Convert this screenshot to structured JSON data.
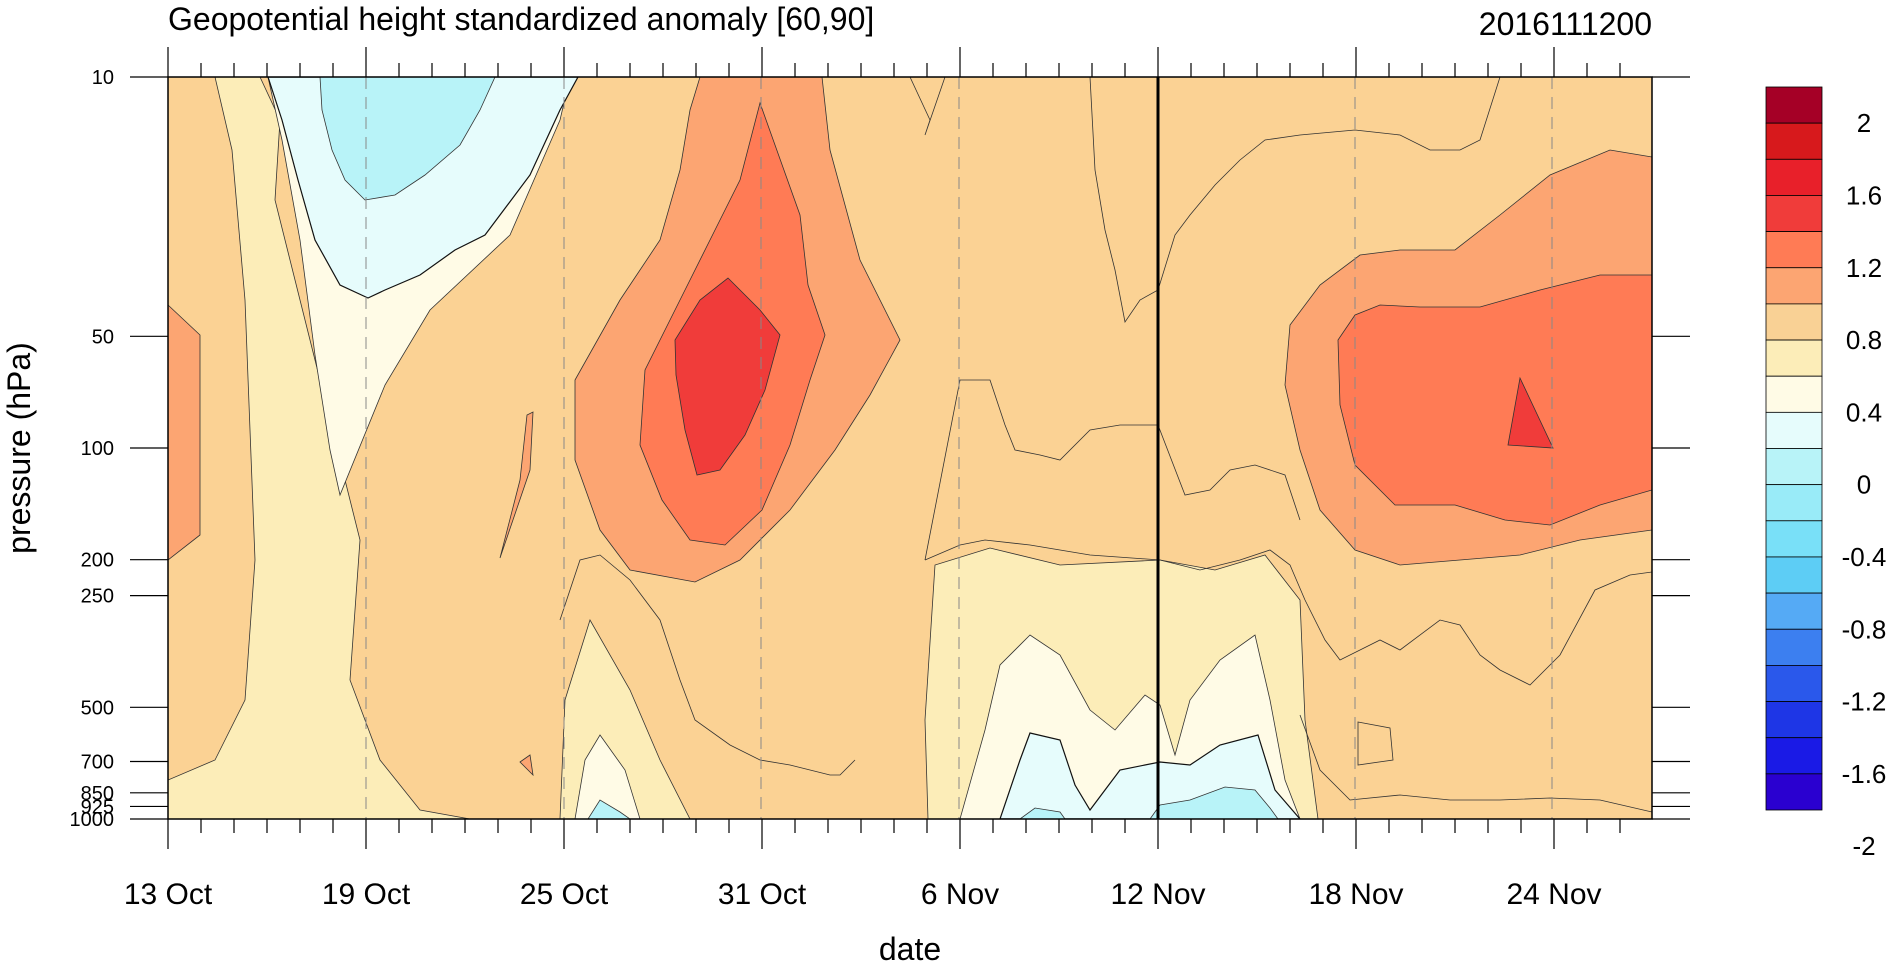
{
  "chart_data": {
    "type": "contour",
    "title": "Geopotential height standardized anomaly [60,90]",
    "run_label": "2016111200",
    "xlabel": "date",
    "ylabel": "pressure (hPa)",
    "x_ticks": [
      "13 Oct",
      "19 Oct",
      "25 Oct",
      "31 Oct",
      "6 Nov",
      "12 Nov",
      "18 Nov",
      "24 Nov"
    ],
    "y_ticks": [
      "10",
      "50",
      "100",
      "200",
      "250",
      "500",
      "700",
      "850",
      "925",
      "1000"
    ],
    "y_scale": "log (inverted)",
    "ylim": [
      1000,
      10
    ],
    "colorbar": {
      "labels": [
        "2",
        "1.6",
        "1.2",
        "0.8",
        "0.4",
        "0",
        "-0.4",
        "-0.8",
        "-1.2",
        "-1.6",
        "-2"
      ],
      "colors": [
        "#a50026",
        "#d7191c",
        "#e8202a",
        "#f03c3a",
        "#ff7b55",
        "#fca572",
        "#f9d195",
        "#fcedb8",
        "#fffbe6",
        "#e6fcfc",
        "#b8f3f8",
        "#99ebf8",
        "#79e0f8",
        "#5dcdf5",
        "#55aaf5",
        "#3c7ff0",
        "#2a58eb",
        "#1e36e6",
        "#1a1ae6",
        "#2a00d0"
      ]
    },
    "highlight_date": "12 Nov",
    "regions": [
      {
        "name": "neg-anomaly-19oct",
        "level": "-0.4 to 0",
        "center_date": "19 Oct",
        "pressure_range": [
          10,
          50
        ]
      },
      {
        "name": "pos-anomaly-31oct",
        "level": "1.2 to 1.6",
        "center_date": "31 Oct",
        "pressure_range": [
          40,
          150
        ]
      },
      {
        "name": "pos-anomaly-22nov",
        "level": "0.8 to 1.2",
        "center_date": "22 Nov",
        "pressure_range": [
          50,
          180
        ]
      },
      {
        "name": "low-level-neg-nov",
        "level": "-0.4 to 0",
        "center_date": "12 Nov",
        "pressure_range": [
          700,
          1000
        ]
      }
    ]
  }
}
